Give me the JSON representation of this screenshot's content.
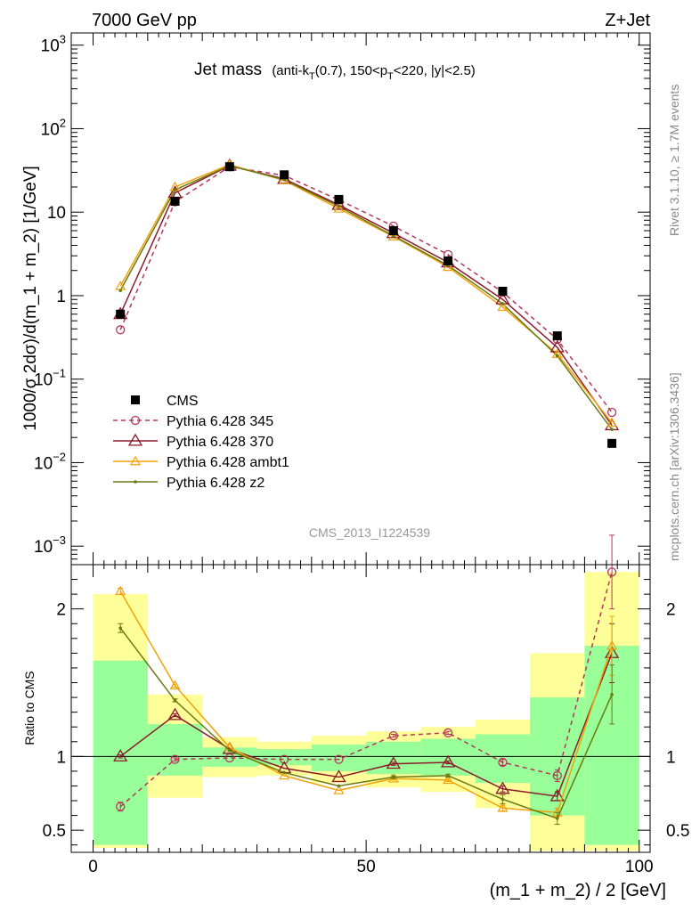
{
  "header": {
    "left": "7000 GeV pp",
    "right": "Z+Jet",
    "rivet": "Rivet 3.1.10, ≥ 1.7M events",
    "mcplots": "mcplots.cern.ch [arXiv:1306.3436]",
    "analysis": "CMS_2013_I1224539"
  },
  "colors": {
    "cms": "#000000",
    "p345": "#b5375a",
    "p370": "#8b1a2c",
    "ambt1": "#f0a30a",
    "z2": "#6b7a12",
    "band_outer": "#ffff99",
    "band_inner": "#99ff99"
  },
  "chart_data": [
    {
      "type": "line",
      "title_main": "Jet mass",
      "title_sub": "(anti-k",
      "title_sub_T": "T",
      "title_sub_2": "(0.7), 150<p",
      "title_sub_T2": "T",
      "title_sub_3": "<220, |y|<2.5)",
      "ylabel": "1000/σ 2dσ)/d(m_1 + m_2) [1/GeV]",
      "yscale": "log",
      "ylim": [
        0.0006,
        1400
      ],
      "xlim": [
        -4,
        102
      ],
      "ytick_labels": [
        {
          "base": "10",
          "exp": "3",
          "v": 1000
        },
        {
          "base": "10",
          "exp": "2",
          "v": 100
        },
        {
          "base": "10",
          "exp": "",
          "v": 10
        },
        {
          "base": "1",
          "exp": "",
          "v": 1
        },
        {
          "base": "10",
          "exp": "−1",
          "v": 0.1
        },
        {
          "base": "10",
          "exp": "−2",
          "v": 0.01
        },
        {
          "base": "10",
          "exp": "−3",
          "v": 0.001
        }
      ],
      "x": [
        5,
        15,
        25,
        35,
        45,
        55,
        65,
        75,
        85,
        95
      ],
      "series": [
        {
          "name": "CMS",
          "key": "cms",
          "values": [
            0.6,
            13.5,
            35,
            28,
            14.2,
            6,
            2.6,
            1.13,
            0.33,
            0.017
          ]
        },
        {
          "name": "Pythia 6.428 345",
          "key": "p345",
          "values": [
            0.39,
            13.3,
            35,
            27.5,
            14,
            6.8,
            3.1,
            1.1,
            0.3,
            0.04
          ]
        },
        {
          "name": "Pythia 6.428 370",
          "key": "p370",
          "values": [
            0.6,
            17,
            36,
            25,
            12.2,
            5.6,
            2.5,
            0.9,
            0.24,
            0.028
          ]
        },
        {
          "name": "Pythia 6.428 ambt1",
          "key": "ambt1",
          "values": [
            1.3,
            20,
            37,
            24,
            11,
            5.1,
            2.2,
            0.73,
            0.2,
            0.03
          ]
        },
        {
          "name": "Pythia 6.428 z2",
          "key": "z2",
          "values": [
            1.15,
            18.5,
            36,
            24.5,
            11.7,
            5.2,
            2.3,
            0.8,
            0.19,
            0.025
          ]
        }
      ],
      "legend_placement": "bottom-left"
    },
    {
      "type": "line",
      "ylabel": "Ratio to CMS",
      "ylim": [
        0.35,
        2.3
      ],
      "xlim": [
        -4,
        102
      ],
      "yticks_labeled": [
        {
          "label": "2",
          "v": 2
        },
        {
          "label": "1",
          "v": 1
        },
        {
          "label": "0.5",
          "v": 0.5
        }
      ],
      "xticks_labeled": [
        {
          "label": "0",
          "v": 0
        },
        {
          "label": "50",
          "v": 50
        },
        {
          "label": "100",
          "v": 100
        }
      ],
      "xlabel": "(m_1 + m_2) / 2 [GeV]",
      "bins": [
        {
          "lo": 0,
          "hi": 10,
          "outer": [
            0.38,
            2.1
          ],
          "inner": [
            0.4,
            1.65
          ]
        },
        {
          "lo": 10,
          "hi": 20,
          "outer": [
            0.72,
            1.42
          ],
          "inner": [
            0.87,
            1.22
          ]
        },
        {
          "lo": 20,
          "hi": 30,
          "outer": [
            0.86,
            1.13
          ],
          "inner": [
            0.93,
            1.06
          ]
        },
        {
          "lo": 30,
          "hi": 40,
          "outer": [
            0.87,
            1.1
          ],
          "inner": [
            0.94,
            1.05
          ]
        },
        {
          "lo": 40,
          "hi": 50,
          "outer": [
            0.82,
            1.14
          ],
          "inner": [
            0.9,
            1.08
          ]
        },
        {
          "lo": 50,
          "hi": 60,
          "outer": [
            0.79,
            1.17
          ],
          "inner": [
            0.88,
            1.1
          ]
        },
        {
          "lo": 60,
          "hi": 70,
          "outer": [
            0.76,
            1.2
          ],
          "inner": [
            0.87,
            1.12
          ]
        },
        {
          "lo": 70,
          "hi": 80,
          "outer": [
            0.65,
            1.25
          ],
          "inner": [
            0.82,
            1.15
          ]
        },
        {
          "lo": 80,
          "hi": 90,
          "outer": [
            0.36,
            1.7
          ],
          "inner": [
            0.6,
            1.4
          ]
        },
        {
          "lo": 90,
          "hi": 100,
          "outer": [
            0.36,
            2.25
          ],
          "inner": [
            0.4,
            1.75
          ]
        }
      ],
      "x": [
        5,
        15,
        25,
        35,
        45,
        55,
        65,
        75,
        85,
        95
      ],
      "series": [
        {
          "name": "Pythia 6.428 345",
          "key": "p345",
          "values": [
            0.66,
            0.98,
            0.99,
            0.98,
            0.98,
            1.14,
            1.16,
            0.96,
            0.87,
            2.25
          ],
          "err": [
            0.03,
            0.01,
            0.005,
            0.005,
            0.005,
            0.01,
            0.01,
            0.02,
            0.04,
            0.25
          ]
        },
        {
          "name": "Pythia 6.428 370",
          "key": "p370",
          "values": [
            1.0,
            1.28,
            1.05,
            0.92,
            0.86,
            0.95,
            0.96,
            0.78,
            0.73,
            1.7
          ],
          "err": [
            0.01,
            0.01,
            0.005,
            0.005,
            0.005,
            0.01,
            0.01,
            0.02,
            0.03,
            0.2
          ]
        },
        {
          "name": "Pythia 6.428 ambt1",
          "key": "ambt1",
          "values": [
            2.12,
            1.48,
            1.06,
            0.87,
            0.77,
            0.85,
            0.84,
            0.65,
            0.62,
            1.75
          ],
          "err": [
            0.02,
            0.01,
            0.005,
            0.005,
            0.005,
            0.01,
            0.01,
            0.02,
            0.03,
            0.2
          ]
        },
        {
          "name": "Pythia 6.428 z2",
          "key": "z2",
          "values": [
            1.87,
            1.38,
            1.04,
            0.89,
            0.8,
            0.86,
            0.87,
            0.71,
            0.58,
            1.42
          ],
          "err": [
            0.03,
            0.01,
            0.005,
            0.005,
            0.005,
            0.01,
            0.01,
            0.03,
            0.04,
            0.2
          ]
        }
      ]
    }
  ]
}
